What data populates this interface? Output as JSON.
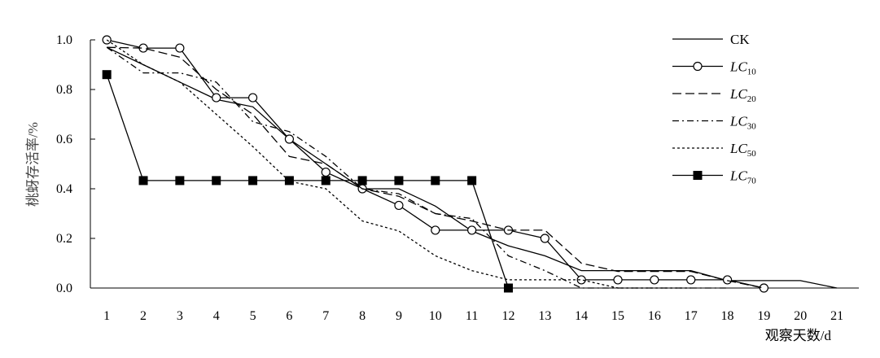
{
  "chart_data": {
    "type": "line",
    "title": "",
    "xlabel": "观察天数/d",
    "ylabel": "桃蚜存活率/%",
    "x": [
      1,
      2,
      3,
      4,
      5,
      6,
      7,
      8,
      9,
      10,
      11,
      12,
      13,
      14,
      15,
      16,
      17,
      18,
      19,
      20,
      21
    ],
    "xlim": [
      0.55,
      21.6
    ],
    "ylim": [
      0,
      1.0
    ],
    "yticks": [
      "0.0",
      "0.2",
      "0.4",
      "0.6",
      "0.8",
      "1.0"
    ],
    "ytick_values": [
      0,
      0.2,
      0.4,
      0.6,
      0.8,
      1.0
    ],
    "xticks": [
      "1",
      "2",
      "3",
      "4",
      "5",
      "6",
      "7",
      "8",
      "9",
      "10",
      "11",
      "12",
      "13",
      "14",
      "15",
      "16",
      "17",
      "18",
      "19",
      "20",
      "21"
    ],
    "grid": false,
    "legend_position": "top-right",
    "series": [
      {
        "name": "CK",
        "legend_main": "CK",
        "legend_sub": "",
        "style": "solid",
        "marker": "none",
        "color": "#000000",
        "values": [
          0.97,
          0.9,
          0.83,
          0.76,
          0.73,
          0.6,
          0.5,
          0.4,
          0.4,
          0.33,
          0.23,
          0.17,
          0.13,
          0.07,
          0.07,
          0.07,
          0.07,
          0.03,
          0.03,
          0.03,
          0.0
        ]
      },
      {
        "name": "LC10",
        "legend_main": "LC",
        "legend_sub": "10",
        "style": "solid",
        "marker": "open-circle",
        "color": "#000000",
        "values": [
          1.0,
          0.967,
          0.967,
          0.767,
          0.767,
          0.6,
          0.467,
          0.4,
          0.333,
          0.233,
          0.233,
          0.233,
          0.2,
          0.033,
          0.033,
          0.033,
          0.033,
          0.033,
          0.0,
          null,
          null
        ]
      },
      {
        "name": "LC20",
        "legend_main": "LC",
        "legend_sub": "20",
        "style": "dashed",
        "marker": "none",
        "color": "#000000",
        "values": [
          0.97,
          0.967,
          0.93,
          0.8,
          0.7,
          0.53,
          0.5,
          0.4,
          0.37,
          0.3,
          0.27,
          0.233,
          0.233,
          0.1,
          0.067,
          0.067,
          0.067,
          0.03,
          0.0,
          null,
          null
        ]
      },
      {
        "name": "LC30",
        "legend_main": "LC",
        "legend_sub": "30",
        "style": "dash-dot",
        "marker": "none",
        "color": "#000000",
        "values": [
          0.97,
          0.867,
          0.867,
          0.83,
          0.67,
          0.63,
          0.53,
          0.4,
          0.38,
          0.3,
          0.28,
          0.13,
          0.07,
          0.0,
          0.0,
          0.0,
          0.0,
          0.0,
          null,
          null,
          null
        ]
      },
      {
        "name": "LC50",
        "legend_main": "LC",
        "legend_sub": "50",
        "style": "dotted",
        "marker": "none",
        "color": "#000000",
        "values": [
          1.0,
          0.9,
          0.83,
          0.7,
          0.57,
          0.43,
          0.4,
          0.27,
          0.23,
          0.13,
          0.07,
          0.033,
          0.033,
          0.033,
          0.0,
          0.0,
          0.0,
          null,
          null,
          null,
          null
        ]
      },
      {
        "name": "LC70",
        "legend_main": "LC",
        "legend_sub": "70",
        "style": "solid",
        "marker": "filled-square",
        "color": "#000000",
        "values": [
          0.86,
          0.433,
          0.433,
          0.433,
          0.433,
          0.433,
          0.433,
          0.433,
          0.433,
          0.433,
          0.433,
          0.0,
          null,
          null,
          null,
          null,
          null,
          null,
          null,
          null,
          null
        ]
      }
    ]
  }
}
